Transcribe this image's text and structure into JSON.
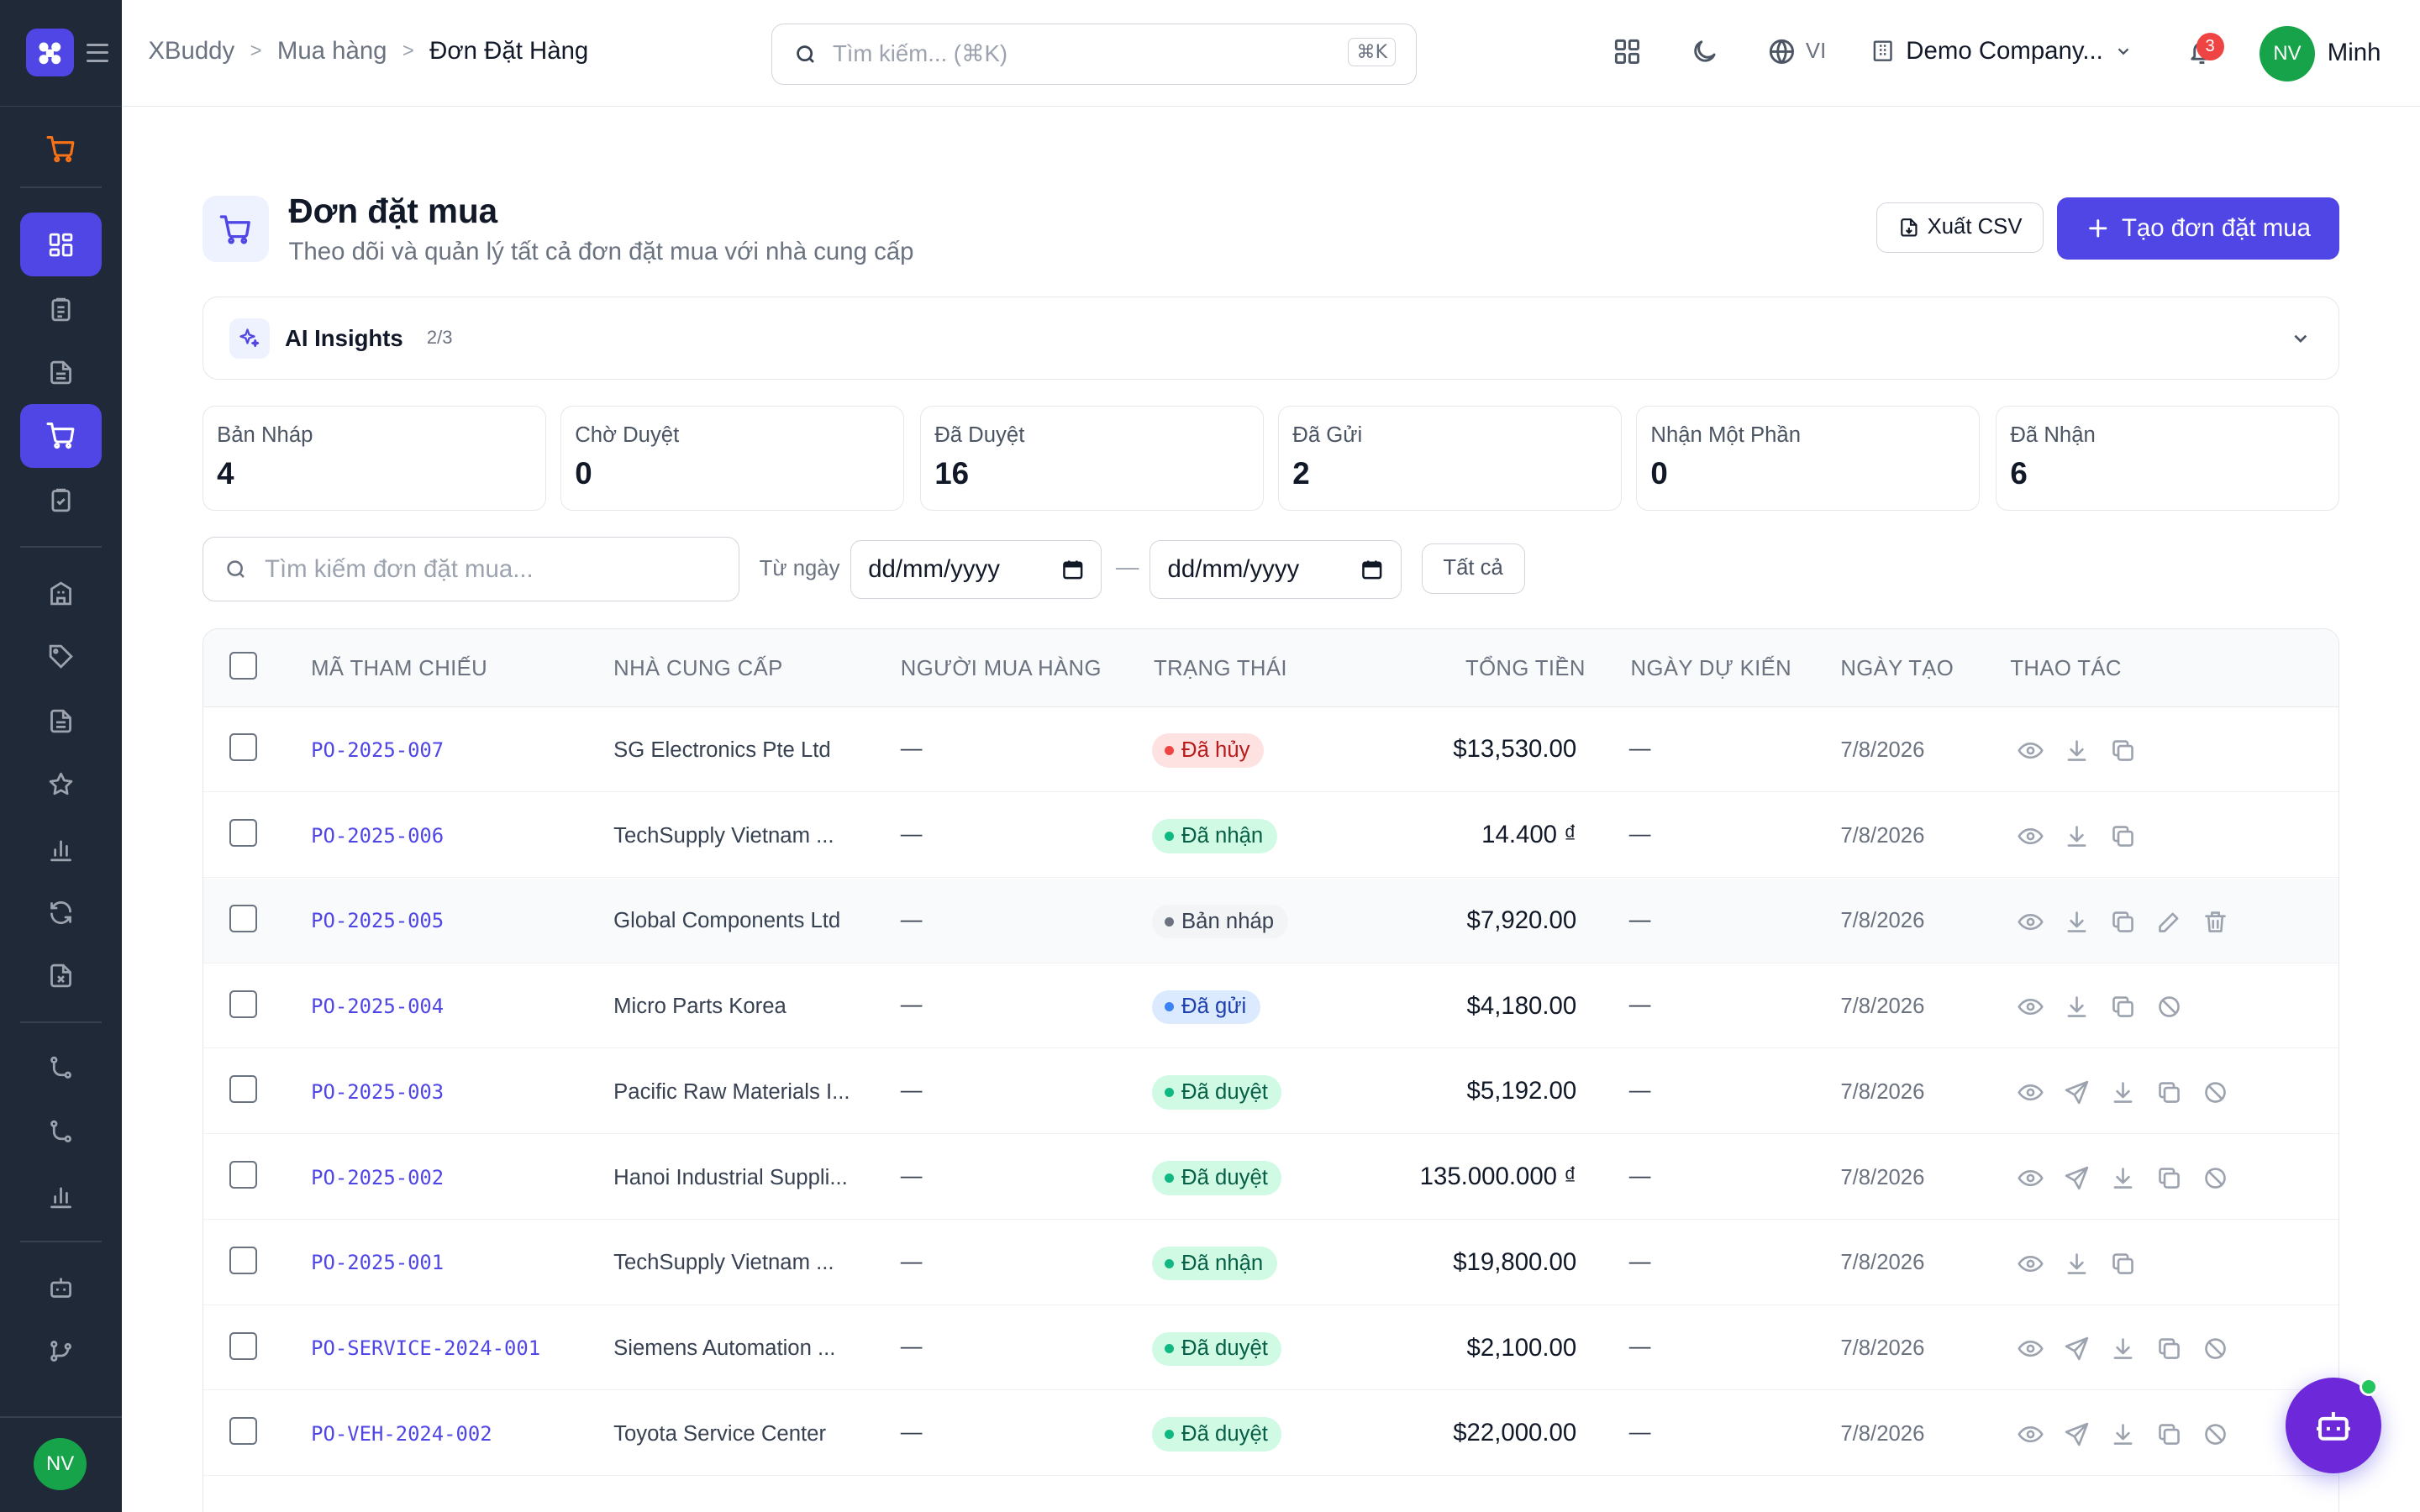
{
  "app": {
    "name": "XBuddy"
  },
  "breadcrumb": [
    "XBuddy",
    "Mua hàng",
    "Đơn Đặt Hàng"
  ],
  "search": {
    "placeholder": "Tìm kiếm... (⌘K)",
    "shortcut": "⌘K"
  },
  "header": {
    "language": "VI",
    "company": "Demo Company...",
    "notifications": "3",
    "user_initials": "NV",
    "user_name": "Minh"
  },
  "page": {
    "title": "Đơn đặt mua",
    "subtitle": "Theo dõi và quản lý tất cả đơn đặt mua với nhà cung cấp",
    "export_label": "Xuất CSV",
    "create_label": "Tạo đơn đặt mua"
  },
  "ai_insights": {
    "title": "AI Insights",
    "count": "2/3"
  },
  "stats": [
    {
      "label": "Bản Nháp",
      "value": "4"
    },
    {
      "label": "Chờ Duyệt",
      "value": "0"
    },
    {
      "label": "Đã Duyệt",
      "value": "16"
    },
    {
      "label": "Đã Gửi",
      "value": "2"
    },
    {
      "label": "Nhận Một Phần",
      "value": "0"
    },
    {
      "label": "Đã Nhận",
      "value": "6"
    }
  ],
  "filters": {
    "search_placeholder": "Tìm kiếm đơn đặt mua...",
    "from_label": "Từ ngày",
    "date_placeholder": "dd/mm/yyyy",
    "dash": "—",
    "all_label": "Tất cả"
  },
  "table": {
    "columns": [
      "MÃ THAM CHIẾU",
      "NHÀ CUNG CẤP",
      "NGƯỜI MUA HÀNG",
      "TRẠNG THÁI",
      "TỔNG TIỀN",
      "NGÀY DỰ KIẾN",
      "NGÀY TẠO",
      "THAO TÁC"
    ],
    "rows": [
      {
        "ref": "PO-2025-007",
        "supplier": "SG Electronics Pte Ltd",
        "buyer": "—",
        "status": "Đã hủy",
        "total": "$13,530.00",
        "expected": "—",
        "created": "7/8/2026"
      },
      {
        "ref": "PO-2025-006",
        "supplier": "TechSupply Vietnam ...",
        "buyer": "—",
        "status": "Đã nhận",
        "total": "14.400 ₫",
        "expected": "—",
        "created": "7/8/2026"
      },
      {
        "ref": "PO-2025-005",
        "supplier": "Global Components Ltd",
        "buyer": "—",
        "status": "Bản nháp",
        "total": "$7,920.00",
        "expected": "—",
        "created": "7/8/2026"
      },
      {
        "ref": "PO-2025-004",
        "supplier": "Micro Parts Korea",
        "buyer": "—",
        "status": "Đã gửi",
        "total": "$4,180.00",
        "expected": "—",
        "created": "7/8/2026"
      },
      {
        "ref": "PO-2025-003",
        "supplier": "Pacific Raw Materials I...",
        "buyer": "—",
        "status": "Đã duyệt",
        "total": "$5,192.00",
        "expected": "—",
        "created": "7/8/2026"
      },
      {
        "ref": "PO-2025-002",
        "supplier": "Hanoi Industrial Suppli...",
        "buyer": "—",
        "status": "Đã duyệt",
        "total": "135.000.000 ₫",
        "expected": "—",
        "created": "7/8/2026"
      },
      {
        "ref": "PO-2025-001",
        "supplier": "TechSupply Vietnam ...",
        "buyer": "—",
        "status": "Đã nhận",
        "total": "$19,800.00",
        "expected": "—",
        "created": "7/8/2026"
      },
      {
        "ref": "PO-SERVICE-2024-001",
        "supplier": "Siemens Automation ...",
        "buyer": "—",
        "status": "Đã duyệt",
        "total": "$2,100.00",
        "expected": "—",
        "created": "7/8/2026"
      },
      {
        "ref": "PO-VEH-2024-002",
        "supplier": "Toyota Service Center",
        "buyer": "—",
        "status": "Đã duyệt",
        "total": "$22,000.00",
        "expected": "—",
        "created": "7/8/2026"
      }
    ]
  },
  "status_colors": {
    "Đã hủy": "#ef4444",
    "Đã nhận": "#10b981",
    "Bản nháp": "#6b7280",
    "Đã gửi": "#3b82f6",
    "Đã duyệt": "#10b981"
  },
  "sidebar": {
    "user_initials": "NV"
  },
  "colors": {
    "accent": "#4f46e5",
    "sidebar": "#1f2937"
  }
}
